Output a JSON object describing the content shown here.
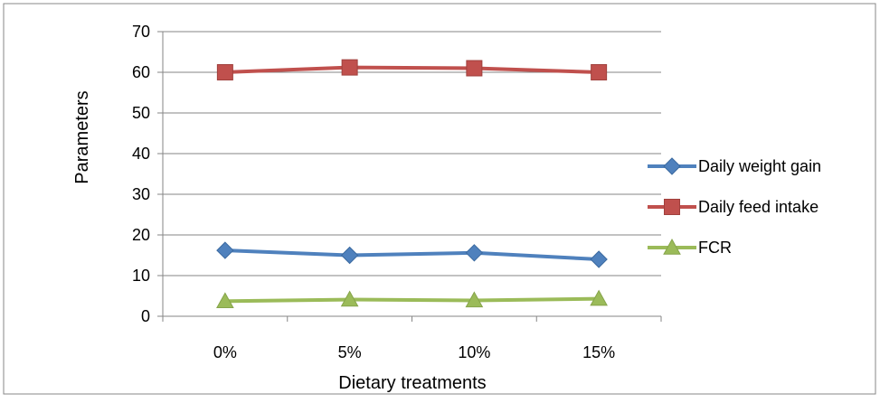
{
  "chart_data": {
    "type": "line",
    "title": "",
    "xlabel": "Dietary treatments",
    "ylabel": "Parameters",
    "categories": [
      "0%",
      "5%",
      "10%",
      "15%"
    ],
    "ylim": [
      0,
      70
    ],
    "y_ticks": [
      0,
      10,
      20,
      30,
      40,
      50,
      60,
      70
    ],
    "grid": "horizontal",
    "legend_position": "right",
    "series": [
      {
        "name": "Daily weight gain",
        "values": [
          16.2,
          15.0,
          15.6,
          14.0
        ],
        "color": "#4f81bd",
        "marker": "diamond"
      },
      {
        "name": "Daily feed intake",
        "values": [
          60.0,
          61.2,
          61.0,
          60.0
        ],
        "color": "#c0504d",
        "marker": "square"
      },
      {
        "name": "FCR",
        "values": [
          3.7,
          4.1,
          3.9,
          4.3
        ],
        "color": "#9bbb59",
        "marker": "triangle"
      }
    ]
  }
}
